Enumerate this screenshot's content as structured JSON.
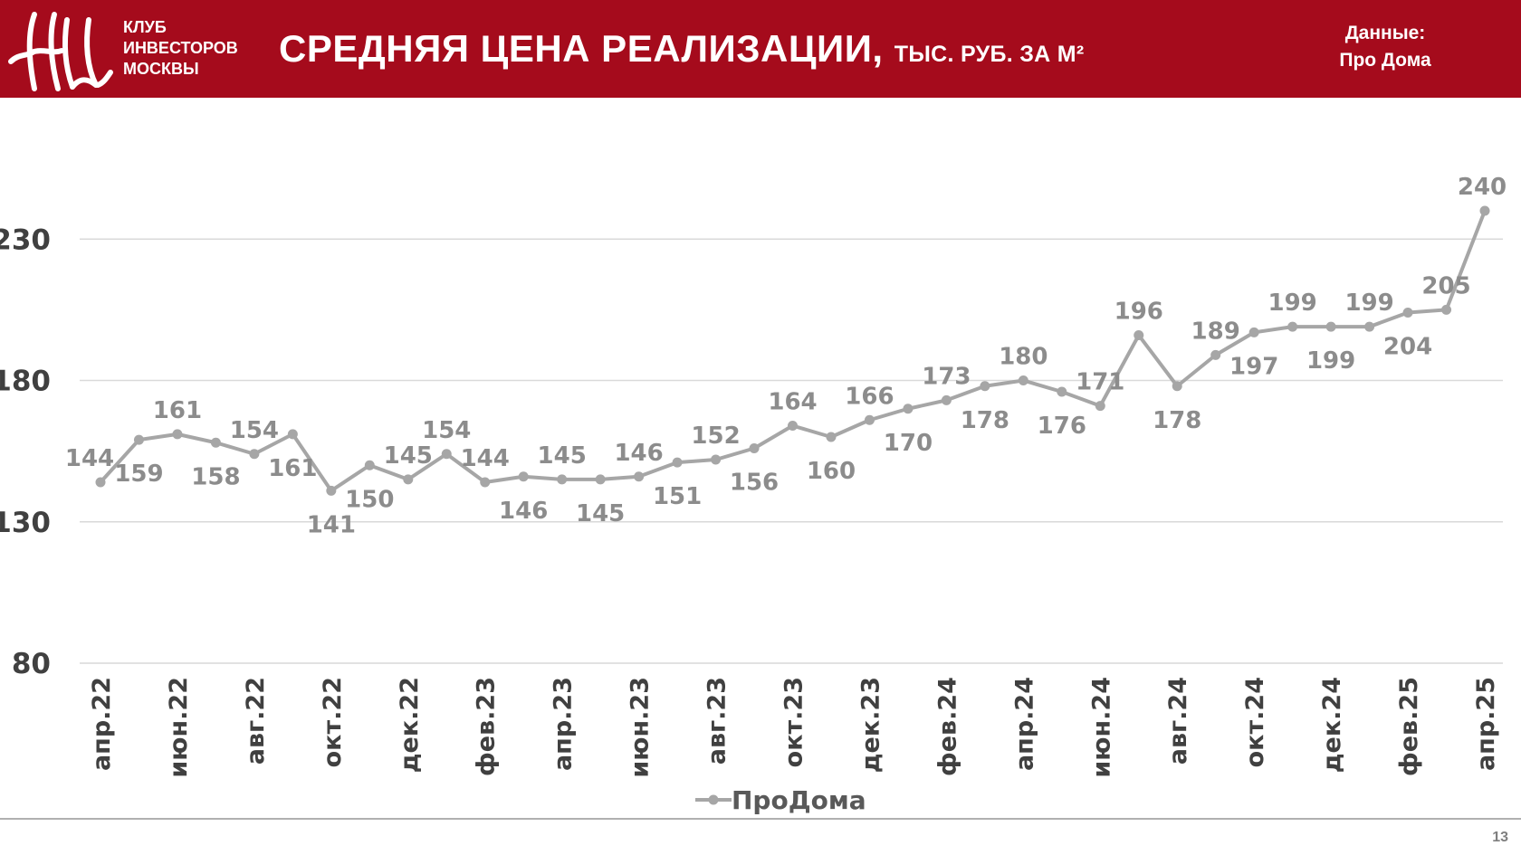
{
  "header": {
    "club_lines": [
      "КЛУБ",
      "ИНВЕСТОРОВ",
      "МОСКВЫ"
    ],
    "title": "СРЕДНЯЯ ЦЕНА РЕАЛИЗАЦИИ,",
    "title_units": "ТЫС. РУБ. ЗА М²",
    "source_line1": "Данные:",
    "source_line2": "Про Дома",
    "brand_color": "#a50b1c"
  },
  "page_number": "13",
  "chart_data": {
    "type": "line",
    "x": [
      "апр.22",
      "май.22",
      "июн.22",
      "июл.22",
      "авг.22",
      "сен.22",
      "окт.22",
      "ноя.22",
      "дек.22",
      "янв.23",
      "фев.23",
      "мар.23",
      "апр.23",
      "май.23",
      "июн.23",
      "июл.23",
      "авг.23",
      "сен.23",
      "окт.23",
      "ноя.23",
      "дек.23",
      "янв.24",
      "фев.24",
      "мар.24",
      "апр.24",
      "май.24",
      "июн.24",
      "июл.24",
      "авг.24",
      "сен.24",
      "окт.24",
      "ноя.24",
      "дек.24",
      "янв.25",
      "фев.25",
      "мар.25",
      "апр.25"
    ],
    "tick_labels": [
      "апр.22",
      "июн.22",
      "авг.22",
      "окт.22",
      "дек.22",
      "фев.23",
      "апр.23",
      "июн.23",
      "авг.23",
      "окт.23",
      "дек.23",
      "фев.24",
      "апр.24",
      "июн.24",
      "авг.24",
      "окт.24",
      "дек.24",
      "фев.25",
      "апр.25"
    ],
    "series": [
      {
        "name": "ПроДома",
        "color": "#a6a6a6",
        "values": [
          144,
          159,
          161,
          158,
          154,
          161,
          141,
          150,
          145,
          154,
          144,
          146,
          145,
          145,
          146,
          151,
          152,
          156,
          164,
          160,
          166,
          170,
          173,
          178,
          180,
          176,
          171,
          196,
          178,
          189,
          197,
          199,
          199,
          199,
          204,
          205,
          240
        ]
      }
    ],
    "yticks": [
      80,
      130,
      180,
      230
    ],
    "ylim": [
      80,
      240
    ],
    "grid": true,
    "legend": "bottom"
  }
}
